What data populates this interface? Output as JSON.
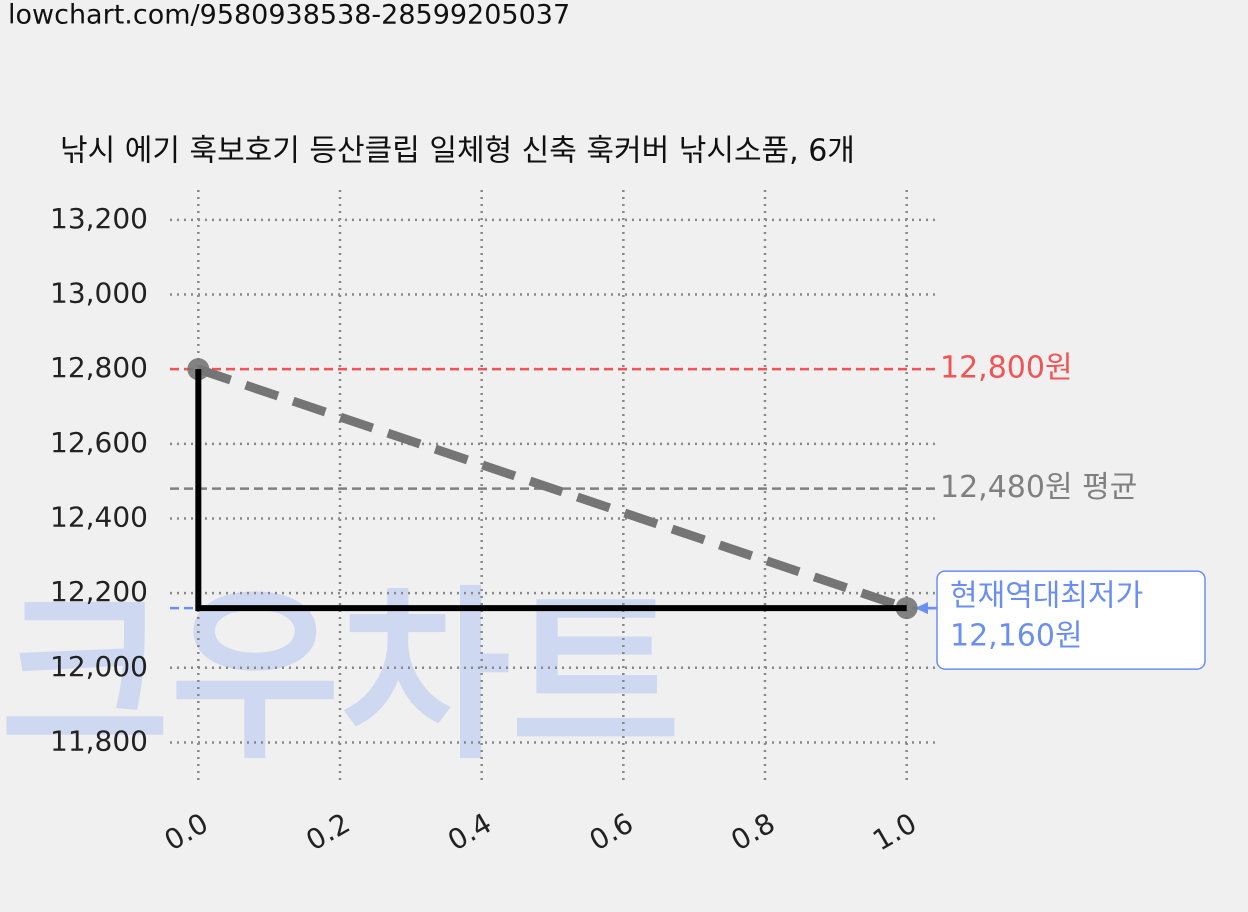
{
  "url": "lowchart.com/9580938538-28599205037",
  "watermark": "크우차트",
  "chart_data": {
    "type": "line",
    "title": "낚시 에기 훅보호기 등산클립 일체형 신축 훅커버 낚시소품, 6개",
    "series": [
      {
        "color": "#757575",
        "dash": true,
        "markers": true,
        "x": [
          0,
          1
        ],
        "values": [
          12800,
          12160
        ]
      },
      {
        "color": "#000000",
        "dash": false,
        "markers": false,
        "x": [
          0,
          0,
          1
        ],
        "values": [
          12800,
          12160,
          12160
        ]
      }
    ],
    "hlines": [
      {
        "value": 12800,
        "label": "12,800원",
        "color": "#f05454"
      },
      {
        "value": 12480,
        "label": "12,480원 평균",
        "color": "#808080"
      },
      {
        "value": 12160,
        "label": "12,160원",
        "note": "현재역대최저가",
        "color": "#6a8ff0"
      }
    ],
    "xlim": [
      -0.04,
      1.04
    ],
    "ylim": [
      11686,
      13280
    ],
    "xticks": [
      {
        "value": 0,
        "label": "0.0"
      },
      {
        "value": 0.2,
        "label": "0.2"
      },
      {
        "value": 0.4,
        "label": "0.4"
      },
      {
        "value": 0.6,
        "label": "0.6"
      },
      {
        "value": 0.8,
        "label": "0.8"
      },
      {
        "value": 1,
        "label": "1.0"
      }
    ],
    "yticks": [
      {
        "value": 11800,
        "label": "11,800"
      },
      {
        "value": 12000,
        "label": "12,000"
      },
      {
        "value": 12200,
        "label": "12,200"
      },
      {
        "value": 12400,
        "label": "12,400"
      },
      {
        "value": 12600,
        "label": "12,600"
      },
      {
        "value": 12800,
        "label": "12,800"
      },
      {
        "value": 13000,
        "label": "13,000"
      },
      {
        "value": 13200,
        "label": "13,200"
      }
    ],
    "grid": true
  }
}
